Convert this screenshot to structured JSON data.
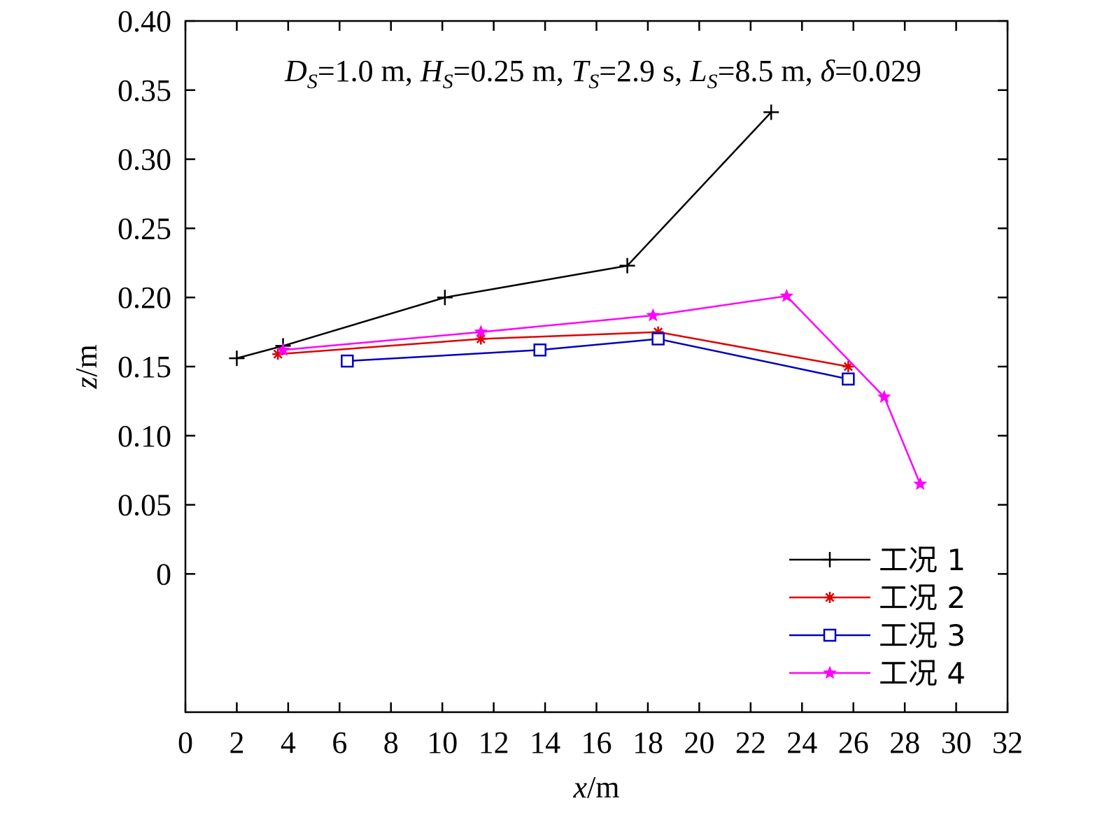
{
  "chart_data": {
    "type": "line",
    "title": "",
    "xlabel": "x/m",
    "ylabel": "z/m",
    "annotation": {
      "text": "DS=1.0 m, HS=0.25 m, TS=2.9 s, LS=8.5 m, δ=0.029",
      "parts": [
        {
          "italic": "D",
          "sub": "S",
          "rest": "=1.0 m, "
        },
        {
          "italic": "H",
          "sub": "S",
          "rest": "=0.25 m, "
        },
        {
          "italic": "T",
          "sub": "S",
          "rest": "=2.9 s, "
        },
        {
          "italic": "L",
          "sub": "S",
          "rest": "=8.5 m, "
        },
        {
          "italic": "δ",
          "sub": "",
          "rest": "=0.029"
        }
      ]
    },
    "xlim": [
      0,
      32
    ],
    "ylim": [
      -0.1,
      0.4
    ],
    "x_ticks": [
      0,
      2,
      4,
      6,
      8,
      10,
      12,
      14,
      16,
      18,
      20,
      22,
      24,
      26,
      28,
      30,
      32
    ],
    "x_tick_labels": [
      "0",
      "2",
      "4",
      "6",
      "8",
      "10",
      "12",
      "14",
      "16",
      "18",
      "20",
      "22",
      "24",
      "26",
      "28",
      "30",
      "32"
    ],
    "y_ticks": [
      0,
      0.05,
      0.1,
      0.15,
      0.2,
      0.25,
      0.3,
      0.35,
      0.4
    ],
    "y_tick_labels": [
      "0",
      "0.05",
      "0.10",
      "0.15",
      "0.20",
      "0.25",
      "0.30",
      "0.35",
      "0.40"
    ],
    "grid": false,
    "legend_position": "bottom-right",
    "series": [
      {
        "name": "工况 1",
        "color": "#000000",
        "marker": "plus",
        "points": [
          [
            2.0,
            0.156
          ],
          [
            3.8,
            0.165
          ],
          [
            10.1,
            0.2
          ],
          [
            17.2,
            0.223
          ],
          [
            22.8,
            0.334
          ]
        ]
      },
      {
        "name": "工况 2",
        "color": "#e00000",
        "marker": "asterisk",
        "points": [
          [
            3.6,
            0.159
          ],
          [
            11.5,
            0.17
          ],
          [
            18.4,
            0.175
          ],
          [
            25.8,
            0.15
          ]
        ]
      },
      {
        "name": "工况 3",
        "color": "#0000c0",
        "marker": "square",
        "points": [
          [
            6.3,
            0.154
          ],
          [
            13.8,
            0.162
          ],
          [
            18.4,
            0.17
          ],
          [
            25.8,
            0.141
          ]
        ]
      },
      {
        "name": "工况 4",
        "color": "#ff00ff",
        "marker": "star",
        "points": [
          [
            3.8,
            0.162
          ],
          [
            11.5,
            0.175
          ],
          [
            18.2,
            0.187
          ],
          [
            23.4,
            0.201
          ],
          [
            27.2,
            0.128
          ],
          [
            28.6,
            0.065
          ]
        ]
      }
    ]
  }
}
